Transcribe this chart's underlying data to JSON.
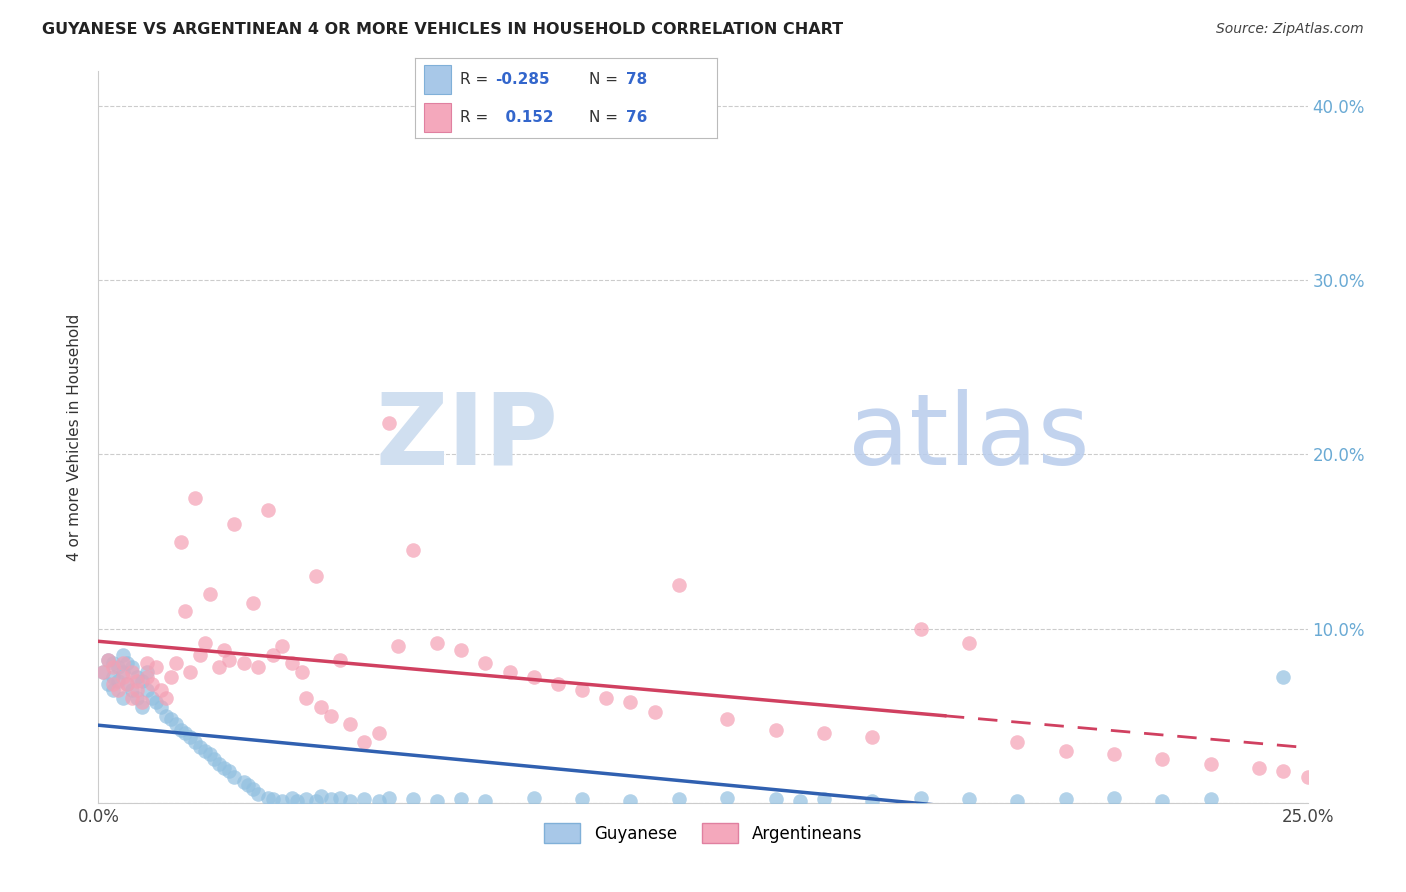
{
  "title": "GUYANESE VS ARGENTINEAN 4 OR MORE VEHICLES IN HOUSEHOLD CORRELATION CHART",
  "source": "Source: ZipAtlas.com",
  "ylabel": "4 or more Vehicles in Household",
  "xlim": [
    0.0,
    0.25
  ],
  "ylim": [
    0.0,
    0.42
  ],
  "legend_label_guyanese": "Guyanese",
  "legend_label_argentinean": "Argentineans",
  "guyanese_color": "#92c0e0",
  "argentinean_color": "#f4a0b4",
  "trend_guyanese_color": "#3060b0",
  "trend_argentinean_color": "#d04060",
  "watermark_zip_color": "#d0dff0",
  "watermark_atlas_color": "#b8ccec",
  "right_axis_color": "#6aaad4",
  "title_color": "#222222",
  "source_color": "#444444",
  "guyanese_x": [
    0.001,
    0.002,
    0.002,
    0.003,
    0.003,
    0.003,
    0.004,
    0.004,
    0.005,
    0.005,
    0.005,
    0.006,
    0.006,
    0.007,
    0.007,
    0.008,
    0.008,
    0.009,
    0.009,
    0.01,
    0.01,
    0.011,
    0.012,
    0.013,
    0.014,
    0.015,
    0.016,
    0.017,
    0.018,
    0.019,
    0.02,
    0.021,
    0.022,
    0.023,
    0.024,
    0.025,
    0.026,
    0.027,
    0.028,
    0.03,
    0.031,
    0.032,
    0.033,
    0.035,
    0.036,
    0.038,
    0.04,
    0.041,
    0.043,
    0.045,
    0.046,
    0.048,
    0.05,
    0.052,
    0.055,
    0.058,
    0.06,
    0.065,
    0.07,
    0.075,
    0.08,
    0.09,
    0.1,
    0.11,
    0.12,
    0.13,
    0.14,
    0.145,
    0.15,
    0.16,
    0.17,
    0.18,
    0.19,
    0.2,
    0.21,
    0.22,
    0.23,
    0.245
  ],
  "guyanese_y": [
    0.075,
    0.068,
    0.082,
    0.065,
    0.072,
    0.08,
    0.07,
    0.078,
    0.06,
    0.075,
    0.085,
    0.068,
    0.08,
    0.065,
    0.078,
    0.06,
    0.072,
    0.055,
    0.07,
    0.065,
    0.075,
    0.06,
    0.058,
    0.055,
    0.05,
    0.048,
    0.045,
    0.042,
    0.04,
    0.038,
    0.035,
    0.032,
    0.03,
    0.028,
    0.025,
    0.022,
    0.02,
    0.018,
    0.015,
    0.012,
    0.01,
    0.008,
    0.005,
    0.003,
    0.002,
    0.001,
    0.003,
    0.001,
    0.002,
    0.001,
    0.004,
    0.002,
    0.003,
    0.001,
    0.002,
    0.001,
    0.003,
    0.002,
    0.001,
    0.002,
    0.001,
    0.003,
    0.002,
    0.001,
    0.002,
    0.003,
    0.002,
    0.001,
    0.002,
    0.001,
    0.003,
    0.002,
    0.001,
    0.002,
    0.003,
    0.001,
    0.002,
    0.072
  ],
  "argentinean_x": [
    0.001,
    0.002,
    0.003,
    0.003,
    0.004,
    0.005,
    0.005,
    0.006,
    0.007,
    0.007,
    0.008,
    0.008,
    0.009,
    0.01,
    0.01,
    0.011,
    0.012,
    0.013,
    0.014,
    0.015,
    0.016,
    0.017,
    0.018,
    0.019,
    0.02,
    0.021,
    0.022,
    0.023,
    0.025,
    0.026,
    0.027,
    0.028,
    0.03,
    0.032,
    0.033,
    0.035,
    0.036,
    0.038,
    0.04,
    0.042,
    0.043,
    0.045,
    0.046,
    0.048,
    0.05,
    0.052,
    0.055,
    0.058,
    0.06,
    0.062,
    0.065,
    0.07,
    0.075,
    0.08,
    0.085,
    0.09,
    0.095,
    0.1,
    0.105,
    0.11,
    0.115,
    0.12,
    0.13,
    0.14,
    0.15,
    0.16,
    0.17,
    0.18,
    0.19,
    0.2,
    0.21,
    0.22,
    0.23,
    0.24,
    0.245,
    0.25
  ],
  "argentinean_y": [
    0.075,
    0.082,
    0.068,
    0.078,
    0.065,
    0.08,
    0.072,
    0.068,
    0.075,
    0.06,
    0.07,
    0.065,
    0.058,
    0.072,
    0.08,
    0.068,
    0.078,
    0.065,
    0.06,
    0.072,
    0.08,
    0.15,
    0.11,
    0.075,
    0.175,
    0.085,
    0.092,
    0.12,
    0.078,
    0.088,
    0.082,
    0.16,
    0.08,
    0.115,
    0.078,
    0.168,
    0.085,
    0.09,
    0.08,
    0.075,
    0.06,
    0.13,
    0.055,
    0.05,
    0.082,
    0.045,
    0.035,
    0.04,
    0.218,
    0.09,
    0.145,
    0.092,
    0.088,
    0.08,
    0.075,
    0.072,
    0.068,
    0.065,
    0.06,
    0.058,
    0.052,
    0.125,
    0.048,
    0.042,
    0.04,
    0.038,
    0.1,
    0.092,
    0.035,
    0.03,
    0.028,
    0.025,
    0.022,
    0.02,
    0.018,
    0.015
  ],
  "x_ticks": [
    0.0,
    0.05,
    0.1,
    0.15,
    0.2,
    0.25
  ],
  "x_tick_labels": [
    "0.0%",
    "",
    "",
    "",
    "",
    "25.0%"
  ],
  "y_ticks": [
    0.0,
    0.1,
    0.2,
    0.3,
    0.4
  ],
  "y_tick_labels_right": [
    "",
    "10.0%",
    "20.0%",
    "30.0%",
    "40.0%"
  ]
}
